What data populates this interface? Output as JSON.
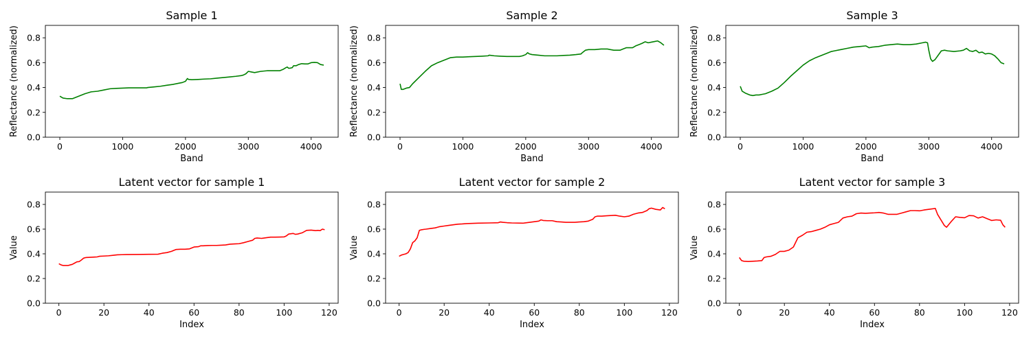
{
  "chart_data": [
    {
      "type": "line",
      "title": "Sample 1",
      "xlabel": "Band",
      "ylabel": "Reflectance (normalized)",
      "xlim": [
        -230,
        4430
      ],
      "ylim": [
        0,
        0.9
      ],
      "xticks": [
        "0",
        "1000",
        "2000",
        "3000",
        "4000"
      ],
      "yticks": [
        "0.0",
        "0.2",
        "0.4",
        "0.6",
        "0.8"
      ],
      "series": [
        {
          "color": "#008000",
          "x": [
            0,
            50,
            120,
            200,
            300,
            400,
            500,
            600,
            700,
            800,
            900,
            1000,
            1100,
            1200,
            1300,
            1380,
            1400,
            1500,
            1600,
            1700,
            1800,
            1900,
            1950,
            2000,
            2030,
            2050,
            2100,
            2200,
            2300,
            2400,
            2500,
            2600,
            2700,
            2800,
            2880,
            2920,
            2960,
            3000,
            3050,
            3100,
            3200,
            3300,
            3400,
            3500,
            3550,
            3600,
            3620,
            3640,
            3660,
            3700,
            3720,
            3760,
            3800,
            3850,
            3900,
            3950,
            4000,
            4050,
            4100,
            4150,
            4200
          ],
          "y": [
            0.33,
            0.315,
            0.31,
            0.31,
            0.33,
            0.35,
            0.365,
            0.37,
            0.38,
            0.39,
            0.393,
            0.395,
            0.397,
            0.397,
            0.397,
            0.397,
            0.4,
            0.405,
            0.41,
            0.418,
            0.425,
            0.435,
            0.44,
            0.45,
            0.472,
            0.465,
            0.463,
            0.465,
            0.468,
            0.47,
            0.475,
            0.48,
            0.485,
            0.49,
            0.495,
            0.5,
            0.51,
            0.53,
            0.525,
            0.52,
            0.53,
            0.535,
            0.535,
            0.535,
            0.545,
            0.56,
            0.565,
            0.555,
            0.555,
            0.56,
            0.575,
            0.575,
            0.585,
            0.592,
            0.59,
            0.59,
            0.6,
            0.602,
            0.6,
            0.585,
            0.58
          ]
        }
      ]
    },
    {
      "type": "line",
      "title": "Sample 2",
      "xlabel": "Band",
      "ylabel": "Reflectance (normalized)",
      "xlim": [
        -230,
        4430
      ],
      "ylim": [
        0,
        0.9
      ],
      "xticks": [
        "0",
        "1000",
        "2000",
        "3000",
        "4000"
      ],
      "yticks": [
        "0.0",
        "0.2",
        "0.4",
        "0.6",
        "0.8"
      ],
      "series": [
        {
          "color": "#008000",
          "x": [
            0,
            20,
            50,
            100,
            150,
            200,
            300,
            400,
            500,
            600,
            700,
            800,
            900,
            1000,
            1100,
            1200,
            1300,
            1400,
            1420,
            1500,
            1600,
            1700,
            1800,
            1900,
            1950,
            2000,
            2030,
            2060,
            2100,
            2200,
            2300,
            2400,
            2500,
            2600,
            2700,
            2800,
            2880,
            2900,
            2950,
            3000,
            3100,
            3200,
            3300,
            3400,
            3500,
            3550,
            3600,
            3700,
            3750,
            3800,
            3850,
            3900,
            3950,
            4000,
            4050,
            4100,
            4150,
            4200
          ],
          "y": [
            0.43,
            0.385,
            0.385,
            0.395,
            0.4,
            0.43,
            0.48,
            0.53,
            0.575,
            0.6,
            0.62,
            0.64,
            0.645,
            0.645,
            0.648,
            0.65,
            0.652,
            0.655,
            0.66,
            0.655,
            0.652,
            0.65,
            0.65,
            0.65,
            0.655,
            0.665,
            0.68,
            0.67,
            0.665,
            0.66,
            0.655,
            0.655,
            0.655,
            0.658,
            0.66,
            0.665,
            0.67,
            0.68,
            0.7,
            0.705,
            0.705,
            0.71,
            0.71,
            0.7,
            0.7,
            0.71,
            0.72,
            0.72,
            0.735,
            0.745,
            0.755,
            0.768,
            0.76,
            0.765,
            0.77,
            0.775,
            0.76,
            0.74
          ]
        }
      ]
    },
    {
      "type": "line",
      "title": "Sample 3",
      "xlabel": "Band",
      "ylabel": "Reflectance (normalized)",
      "xlim": [
        -230,
        4430
      ],
      "ylim": [
        0,
        0.9
      ],
      "xticks": [
        "0",
        "1000",
        "2000",
        "3000",
        "4000"
      ],
      "yticks": [
        "0.0",
        "0.2",
        "0.4",
        "0.6",
        "0.8"
      ],
      "series": [
        {
          "color": "#008000",
          "x": [
            0,
            30,
            80,
            150,
            200,
            250,
            300,
            350,
            400,
            500,
            600,
            700,
            800,
            900,
            1000,
            1100,
            1200,
            1300,
            1400,
            1450,
            1500,
            1600,
            1700,
            1800,
            1900,
            2000,
            2050,
            2100,
            2200,
            2300,
            2400,
            2500,
            2600,
            2700,
            2800,
            2900,
            2950,
            2980,
            3000,
            3030,
            3060,
            3100,
            3150,
            3200,
            3250,
            3300,
            3400,
            3500,
            3550,
            3600,
            3650,
            3700,
            3750,
            3800,
            3850,
            3900,
            3950,
            4000,
            4050,
            4100,
            4150,
            4200
          ],
          "y": [
            0.41,
            0.37,
            0.355,
            0.34,
            0.335,
            0.34,
            0.34,
            0.345,
            0.35,
            0.37,
            0.395,
            0.44,
            0.49,
            0.535,
            0.58,
            0.615,
            0.64,
            0.66,
            0.68,
            0.69,
            0.695,
            0.705,
            0.715,
            0.725,
            0.73,
            0.735,
            0.72,
            0.725,
            0.73,
            0.74,
            0.745,
            0.75,
            0.745,
            0.745,
            0.75,
            0.76,
            0.765,
            0.76,
            0.7,
            0.63,
            0.61,
            0.625,
            0.66,
            0.695,
            0.7,
            0.695,
            0.69,
            0.695,
            0.7,
            0.715,
            0.695,
            0.69,
            0.7,
            0.68,
            0.685,
            0.67,
            0.675,
            0.67,
            0.655,
            0.63,
            0.6,
            0.59
          ]
        }
      ]
    },
    {
      "type": "line",
      "title": "Latent vector for sample 1",
      "xlabel": "Index",
      "ylabel": "Value",
      "xlim": [
        -6,
        124
      ],
      "ylim": [
        0,
        0.9
      ],
      "xticks": [
        "0",
        "20",
        "40",
        "60",
        "80",
        "100",
        "120"
      ],
      "yticks": [
        "0.0",
        "0.2",
        "0.4",
        "0.6",
        "0.8"
      ],
      "series": [
        {
          "color": "#ff0000",
          "x": [
            0,
            1,
            2,
            3,
            4,
            5,
            6,
            7,
            8,
            9,
            10,
            11,
            12,
            14,
            16,
            17,
            18,
            20,
            22,
            24,
            26,
            28,
            30,
            35,
            40,
            44,
            46,
            48,
            50,
            52,
            54,
            56,
            58,
            60,
            62,
            63,
            64,
            66,
            68,
            70,
            72,
            74,
            76,
            78,
            80,
            82,
            84,
            86,
            87,
            88,
            90,
            92,
            94,
            96,
            98,
            100,
            101,
            102,
            104,
            105,
            106,
            108,
            110,
            112,
            114,
            115,
            116,
            117,
            118
          ],
          "y": [
            0.32,
            0.31,
            0.305,
            0.305,
            0.305,
            0.31,
            0.315,
            0.325,
            0.335,
            0.337,
            0.35,
            0.365,
            0.37,
            0.372,
            0.374,
            0.375,
            0.38,
            0.382,
            0.384,
            0.388,
            0.392,
            0.393,
            0.394,
            0.395,
            0.396,
            0.397,
            0.405,
            0.41,
            0.42,
            0.435,
            0.437,
            0.437,
            0.44,
            0.455,
            0.458,
            0.465,
            0.465,
            0.467,
            0.468,
            0.468,
            0.47,
            0.472,
            0.478,
            0.48,
            0.482,
            0.49,
            0.5,
            0.51,
            0.525,
            0.528,
            0.525,
            0.53,
            0.535,
            0.535,
            0.536,
            0.537,
            0.545,
            0.56,
            0.565,
            0.558,
            0.56,
            0.57,
            0.59,
            0.592,
            0.588,
            0.59,
            0.588,
            0.6,
            0.595
          ]
        }
      ]
    },
    {
      "type": "line",
      "title": "Latent vector for sample 2",
      "xlabel": "Index",
      "ylabel": "Value",
      "xlim": [
        -6,
        124
      ],
      "ylim": [
        0,
        0.9
      ],
      "xticks": [
        "0",
        "20",
        "40",
        "60",
        "80",
        "100",
        "120"
      ],
      "yticks": [
        "0.0",
        "0.2",
        "0.4",
        "0.6",
        "0.8"
      ],
      "series": [
        {
          "color": "#ff0000",
          "x": [
            0,
            1,
            2,
            3,
            4,
            5,
            6,
            7,
            8,
            9,
            10,
            11,
            12,
            14,
            16,
            18,
            20,
            22,
            24,
            26,
            28,
            30,
            35,
            40,
            44,
            45,
            46,
            48,
            50,
            55,
            58,
            60,
            62,
            63,
            64,
            66,
            68,
            70,
            72,
            74,
            76,
            78,
            80,
            82,
            84,
            86,
            87,
            88,
            90,
            92,
            94,
            96,
            98,
            100,
            102,
            104,
            106,
            108,
            110,
            111,
            112,
            114,
            116,
            117,
            118
          ],
          "y": [
            0.38,
            0.39,
            0.395,
            0.4,
            0.41,
            0.44,
            0.49,
            0.505,
            0.53,
            0.59,
            0.595,
            0.598,
            0.6,
            0.605,
            0.61,
            0.62,
            0.625,
            0.63,
            0.635,
            0.64,
            0.642,
            0.645,
            0.648,
            0.65,
            0.652,
            0.658,
            0.655,
            0.652,
            0.65,
            0.648,
            0.655,
            0.66,
            0.665,
            0.675,
            0.67,
            0.668,
            0.668,
            0.66,
            0.658,
            0.655,
            0.655,
            0.655,
            0.658,
            0.66,
            0.665,
            0.68,
            0.7,
            0.705,
            0.705,
            0.708,
            0.71,
            0.712,
            0.705,
            0.7,
            0.705,
            0.72,
            0.73,
            0.735,
            0.75,
            0.765,
            0.77,
            0.76,
            0.755,
            0.775,
            0.765
          ]
        }
      ]
    },
    {
      "type": "line",
      "title": "Latent vector for sample 3",
      "xlabel": "Index",
      "ylabel": "Value",
      "xlim": [
        -6,
        124
      ],
      "ylim": [
        0,
        0.9
      ],
      "xticks": [
        "0",
        "20",
        "40",
        "60",
        "80",
        "100",
        "120"
      ],
      "yticks": [
        "0.0",
        "0.2",
        "0.4",
        "0.6",
        "0.8"
      ],
      "series": [
        {
          "color": "#ff0000",
          "x": [
            0,
            1,
            2,
            4,
            6,
            8,
            10,
            11,
            12,
            14,
            16,
            18,
            20,
            22,
            24,
            26,
            28,
            30,
            32,
            34,
            36,
            38,
            40,
            42,
            44,
            46,
            48,
            50,
            52,
            54,
            56,
            58,
            60,
            62,
            64,
            66,
            68,
            70,
            72,
            74,
            76,
            78,
            80,
            82,
            84,
            86,
            87,
            88,
            90,
            91,
            92,
            94,
            96,
            98,
            100,
            102,
            104,
            106,
            108,
            110,
            112,
            114,
            116,
            117,
            118
          ],
          "y": [
            0.37,
            0.345,
            0.34,
            0.338,
            0.34,
            0.342,
            0.345,
            0.37,
            0.375,
            0.38,
            0.395,
            0.42,
            0.42,
            0.43,
            0.455,
            0.53,
            0.55,
            0.575,
            0.58,
            0.59,
            0.6,
            0.615,
            0.635,
            0.645,
            0.655,
            0.69,
            0.7,
            0.705,
            0.725,
            0.73,
            0.728,
            0.73,
            0.732,
            0.735,
            0.73,
            0.72,
            0.72,
            0.72,
            0.73,
            0.74,
            0.75,
            0.75,
            0.748,
            0.755,
            0.76,
            0.765,
            0.768,
            0.72,
            0.66,
            0.63,
            0.615,
            0.66,
            0.7,
            0.695,
            0.692,
            0.71,
            0.708,
            0.69,
            0.7,
            0.685,
            0.67,
            0.675,
            0.672,
            0.635,
            0.615
          ]
        }
      ]
    }
  ]
}
